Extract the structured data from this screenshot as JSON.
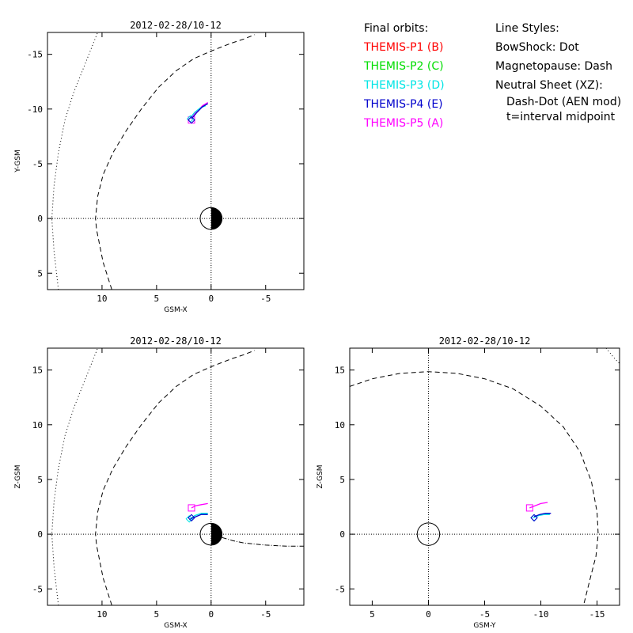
{
  "legend": {
    "title": "Final orbits:",
    "probes": [
      {
        "label": "THEMIS-P1 (B)",
        "color": "#ff0000"
      },
      {
        "label": "THEMIS-P2 (C)",
        "color": "#00dd00"
      },
      {
        "label": "THEMIS-P3 (D)",
        "color": "#00e5e5"
      },
      {
        "label": "THEMIS-P4 (E)",
        "color": "#0000cc"
      },
      {
        "label": "THEMIS-P5 (A)",
        "color": "#ff00ff"
      }
    ],
    "styles_title": "Line Styles:",
    "bowshock": "BowShock: Dot",
    "magnetopause": "Magnetopause: Dash",
    "neutral_sheet": "Neutral Sheet (XZ):",
    "neutral_sheet_model": "Dash-Dot (AEN mod)",
    "time_note": "t=interval midpoint"
  },
  "chart_data": [
    {
      "type": "line",
      "id": "xy",
      "title": "2012-02-28/10-12",
      "xlabel": "GSM-X",
      "ylabel": "Y-GSM",
      "xlim": [
        15,
        -8.5
      ],
      "ylim": [
        6.5,
        -17
      ],
      "xticks": [
        10,
        5,
        0,
        -5
      ],
      "yticks": [
        -15,
        -10,
        -5,
        0,
        5
      ],
      "earth": "day-night",
      "bowshock": [
        [
          14,
          6.5
        ],
        [
          14.4,
          3
        ],
        [
          14.6,
          0
        ],
        [
          14.4,
          -3
        ],
        [
          14,
          -6
        ],
        [
          13.4,
          -9
        ],
        [
          12.6,
          -11.5
        ],
        [
          11.6,
          -14
        ],
        [
          10.8,
          -16
        ],
        [
          10.4,
          -17
        ]
      ],
      "magnetopause": [
        [
          9.1,
          6.5
        ],
        [
          9.9,
          4
        ],
        [
          10.5,
          1
        ],
        [
          10.6,
          0
        ],
        [
          10.4,
          -2
        ],
        [
          9.9,
          -4
        ],
        [
          9,
          -6
        ],
        [
          7.8,
          -8
        ],
        [
          6.4,
          -10
        ],
        [
          4.8,
          -12
        ],
        [
          3.2,
          -13.5
        ],
        [
          1.6,
          -14.6
        ],
        [
          0,
          -15.3
        ],
        [
          -1.8,
          -16
        ],
        [
          -3,
          -16.4
        ],
        [
          -4,
          -16.8
        ]
      ],
      "orbits": [
        {
          "probe": "P5",
          "color": "#ff00ff",
          "points": [
            [
              0.3,
              -10.6
            ],
            [
              0.8,
              -10.3
            ],
            [
              1.3,
              -9.8
            ],
            [
              1.8,
              -9.2
            ]
          ],
          "end": [
            1.8,
            -9.0
          ],
          "marker": "square"
        },
        {
          "probe": "P3",
          "color": "#00e5e5",
          "points": [
            [
              0.5,
              -10.3
            ],
            [
              1.0,
              -10.1
            ],
            [
              1.5,
              -9.7
            ],
            [
              2.0,
              -9.1
            ]
          ],
          "end": [
            1.9,
            -9.1
          ],
          "marker": "diamond"
        },
        {
          "probe": "P4",
          "color": "#0000cc",
          "points": [
            [
              0.3,
              -10.5
            ],
            [
              0.8,
              -10.2
            ],
            [
              1.3,
              -9.7
            ],
            [
              1.8,
              -9.1
            ]
          ],
          "end": [
            1.8,
            -9.0
          ],
          "marker": "diamond"
        }
      ]
    },
    {
      "type": "line",
      "id": "xz",
      "title": "2012-02-28/10-12",
      "xlabel": "GSM-X",
      "ylabel": "Z-GSM",
      "xlim": [
        15,
        -8.5
      ],
      "ylim": [
        -6.5,
        17
      ],
      "xticks": [
        10,
        5,
        0,
        -5
      ],
      "yticks": [
        -5,
        0,
        5,
        10,
        15
      ],
      "earth": "day-night",
      "bowshock": [
        [
          14,
          -6.5
        ],
        [
          14.4,
          -3
        ],
        [
          14.6,
          0
        ],
        [
          14.4,
          3
        ],
        [
          14,
          6
        ],
        [
          13.4,
          9
        ],
        [
          12.6,
          11.5
        ],
        [
          11.6,
          14
        ],
        [
          10.8,
          16
        ],
        [
          10.4,
          17
        ]
      ],
      "magnetopause": [
        [
          9.1,
          -6.5
        ],
        [
          9.9,
          -4
        ],
        [
          10.5,
          -1
        ],
        [
          10.6,
          0
        ],
        [
          10.4,
          2
        ],
        [
          9.9,
          4
        ],
        [
          9,
          6
        ],
        [
          7.8,
          8
        ],
        [
          6.4,
          10
        ],
        [
          4.8,
          12
        ],
        [
          3.2,
          13.5
        ],
        [
          1.6,
          14.6
        ],
        [
          0,
          15.3
        ],
        [
          -1.8,
          16
        ],
        [
          -3,
          16.4
        ],
        [
          -4,
          16.8
        ]
      ],
      "neutral_sheet": [
        [
          -1,
          -0.3
        ],
        [
          -2,
          -0.6
        ],
        [
          -3,
          -0.8
        ],
        [
          -4,
          -0.9
        ],
        [
          -5,
          -1.0
        ],
        [
          -6,
          -1.05
        ],
        [
          -7,
          -1.1
        ],
        [
          -8.5,
          -1.1
        ]
      ],
      "orbits": [
        {
          "probe": "P5",
          "color": "#ff00ff",
          "points": [
            [
              0.3,
              2.8
            ],
            [
              0.9,
              2.7
            ],
            [
              1.4,
              2.6
            ],
            [
              1.8,
              2.4
            ]
          ],
          "end": [
            1.8,
            2.4
          ],
          "marker": "square"
        },
        {
          "probe": "P3",
          "color": "#00e5e5",
          "points": [
            [
              0.3,
              1.9
            ],
            [
              0.9,
              1.9
            ],
            [
              1.5,
              1.7
            ],
            [
              2.0,
              1.3
            ]
          ],
          "end": [
            2.0,
            1.4
          ],
          "marker": "diamond"
        },
        {
          "probe": "P4",
          "color": "#0000cc",
          "points": [
            [
              0.3,
              1.8
            ],
            [
              0.9,
              1.8
            ],
            [
              1.4,
              1.6
            ],
            [
              1.9,
              1.4
            ]
          ],
          "end": [
            1.8,
            1.5
          ],
          "marker": "diamond"
        }
      ]
    },
    {
      "type": "line",
      "id": "yz",
      "title": "2012-02-28/10-12",
      "xlabel": "GSM-Y",
      "ylabel": "Z-GSM",
      "xlim": [
        7,
        -17
      ],
      "ylim": [
        -6.5,
        17
      ],
      "xticks": [
        5,
        0,
        -5,
        -10,
        -15
      ],
      "yticks": [
        -5,
        0,
        5,
        10,
        15
      ],
      "earth": "full",
      "bowshock": [
        [
          -15.8,
          17
        ],
        [
          -16.6,
          16
        ],
        [
          -17,
          15.6
        ]
      ],
      "magnetopause": [
        [
          7,
          13.5
        ],
        [
          5,
          14.2
        ],
        [
          2.5,
          14.7
        ],
        [
          0,
          14.85
        ],
        [
          -2.5,
          14.7
        ],
        [
          -5,
          14.2
        ],
        [
          -7.5,
          13.3
        ],
        [
          -10,
          11.7
        ],
        [
          -12,
          9.8
        ],
        [
          -13.5,
          7.5
        ],
        [
          -14.5,
          4.8
        ],
        [
          -15,
          2
        ],
        [
          -15.1,
          0
        ],
        [
          -14.9,
          -2
        ],
        [
          -14.4,
          -4
        ],
        [
          -13.8,
          -6.5
        ]
      ],
      "orbits": [
        {
          "probe": "P5",
          "color": "#ff00ff",
          "points": [
            [
              -9.0,
              2.4
            ],
            [
              -9.5,
              2.6
            ],
            [
              -10,
              2.8
            ],
            [
              -10.6,
              2.9
            ]
          ],
          "end": [
            -9.0,
            2.4
          ],
          "marker": "square"
        },
        {
          "probe": "P3",
          "color": "#00e5e5",
          "points": [
            [
              -9.3,
              1.5
            ],
            [
              -9.8,
              1.7
            ],
            [
              -10.3,
              1.8
            ],
            [
              -10.8,
              1.8
            ]
          ],
          "end": [
            -9.4,
            1.5
          ],
          "marker": "diamond"
        },
        {
          "probe": "P4",
          "color": "#0000cc",
          "points": [
            [
              -9.4,
              1.6
            ],
            [
              -9.9,
              1.8
            ],
            [
              -10.4,
              1.9
            ],
            [
              -10.9,
              1.9
            ]
          ],
          "end": [
            -9.4,
            1.5
          ],
          "marker": "diamond"
        }
      ]
    }
  ]
}
